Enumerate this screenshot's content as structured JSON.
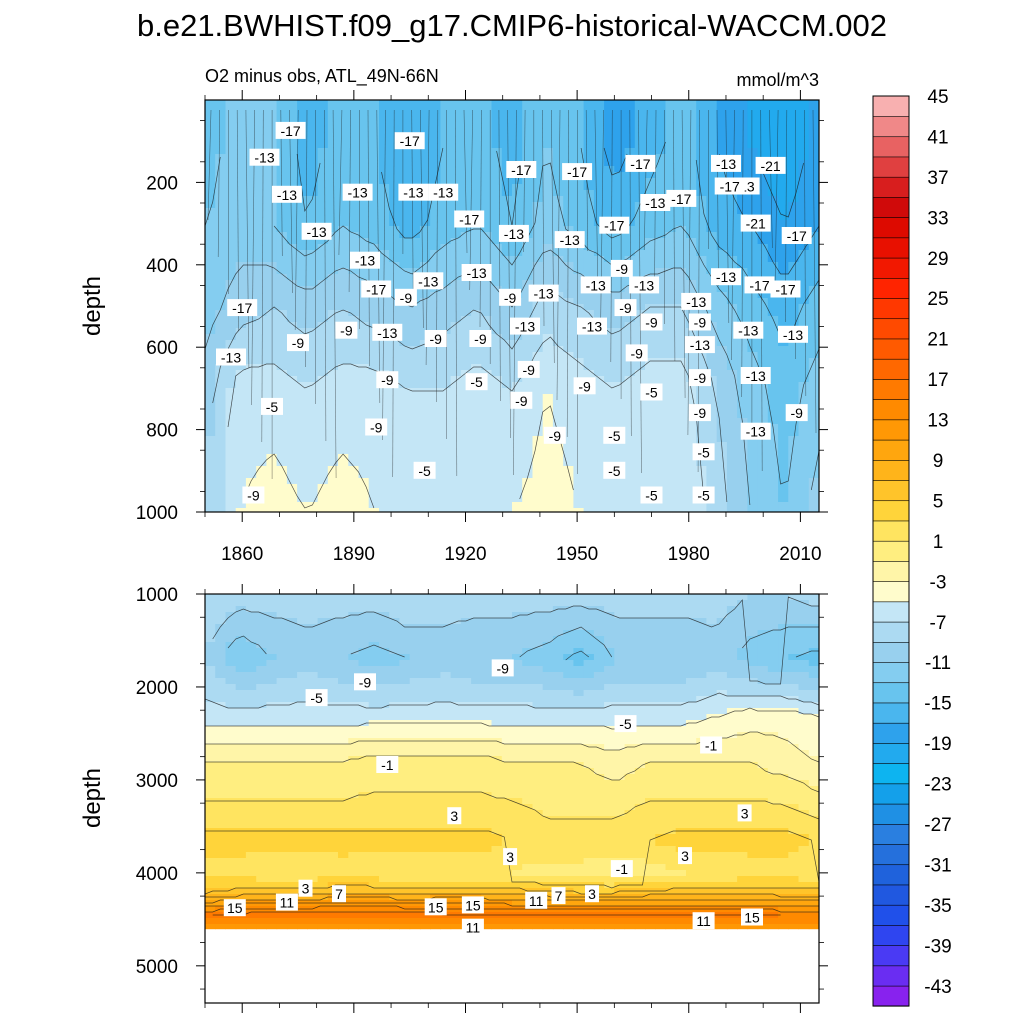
{
  "chart_data": {
    "type": "contour",
    "title": "b.e21.BWHIST.f09_g17.CMIP6-historical-WACCM.002",
    "left_subtitle": "O2 minus obs, ATL_49N-66N",
    "right_subtitle": "mmol/m^3",
    "x": {
      "range": [
        1850,
        2015
      ],
      "ticks": [
        1860,
        1890,
        1920,
        1950,
        1980,
        2010
      ],
      "tick_labels": [
        "1860",
        "1890",
        "1920",
        "1950",
        "1980",
        "2010"
      ]
    },
    "panels": [
      {
        "name": "upper",
        "ylabel": "depth",
        "ylim": [
          0,
          1000
        ],
        "yticks": [
          200,
          400,
          600,
          800,
          1000
        ],
        "ytick_labels": [
          "200",
          "400",
          "600",
          "800",
          "1000"
        ],
        "x_tick_labels_shown": true,
        "bands": [
          {
            "depth": 100,
            "values": [
              -14,
              -12,
              -13,
              -16,
              -14,
              -15,
              -17,
              -15,
              -14,
              -16,
              -13,
              -15,
              -18,
              -16,
              -14,
              -17,
              -19,
              -21,
              -18
            ]
          },
          {
            "depth": 300,
            "values": [
              -13,
              -12,
              -13,
              -15,
              -13,
              -14,
              -16,
              -14,
              -13,
              -15,
              -12,
              -14,
              -16,
              -14,
              -13,
              -16,
              -17,
              -19,
              -17
            ]
          },
          {
            "depth": 500,
            "values": [
              -12,
              -10,
              -9,
              -10,
              -9,
              -10,
              -11,
              -10,
              -9,
              -11,
              -8,
              -9,
              -10,
              -9,
              -9,
              -12,
              -14,
              -16,
              -14
            ]
          },
          {
            "depth": 700,
            "values": [
              -10,
              -6,
              -6,
              -7,
              -6,
              -6,
              -7,
              -7,
              -6,
              -7,
              -5,
              -6,
              -7,
              -6,
              -6,
              -9,
              -12,
              -14,
              -12
            ]
          },
          {
            "depth": 1000,
            "values": [
              -9,
              -5,
              -4,
              -5,
              -4,
              -5,
              -6,
              -6,
              -5,
              -5,
              -4,
              -5,
              -6,
              -5,
              -5,
              -8,
              -11,
              -13,
              -10
            ]
          }
        ],
        "contour_labels": [
          {
            "text": "-17",
            "year": 1873,
            "depth": 75
          },
          {
            "text": "-13",
            "year": 1866,
            "depth": 140
          },
          {
            "text": "-13",
            "year": 1872,
            "depth": 230
          },
          {
            "text": "-13",
            "year": 1891,
            "depth": 225
          },
          {
            "text": "-13",
            "year": 1906,
            "depth": 225
          },
          {
            "text": "-13",
            "year": 1914,
            "depth": 225
          },
          {
            "text": "-13",
            "year": 1880,
            "depth": 320
          },
          {
            "text": "-13",
            "year": 1893,
            "depth": 390
          },
          {
            "text": "-13",
            "year": 1933,
            "depth": 325
          },
          {
            "text": "-13",
            "year": 1948,
            "depth": 340
          },
          {
            "text": "-13",
            "year": 1971,
            "depth": 250
          },
          {
            "text": "-13",
            "year": 1995,
            "depth": 210
          },
          {
            "text": "-13",
            "year": 1990,
            "depth": 155
          },
          {
            "text": "-17",
            "year": 1905,
            "depth": 100
          },
          {
            "text": "-17",
            "year": 1921,
            "depth": 290
          },
          {
            "text": "-17",
            "year": 1935,
            "depth": 170
          },
          {
            "text": "-17",
            "year": 1950,
            "depth": 175
          },
          {
            "text": "-17",
            "year": 1967,
            "depth": 155
          },
          {
            "text": "-17",
            "year": 1978,
            "depth": 240
          },
          {
            "text": "-17",
            "year": 1991,
            "depth": 210
          },
          {
            "text": "-21",
            "year": 2002,
            "depth": 160
          },
          {
            "text": "-21",
            "year": 1998,
            "depth": 300
          },
          {
            "text": "-17",
            "year": 2009,
            "depth": 330
          },
          {
            "text": "-17",
            "year": 1960,
            "depth": 305
          },
          {
            "text": "-17",
            "year": 1896,
            "depth": 460
          },
          {
            "text": "-13",
            "year": 1910,
            "depth": 440
          },
          {
            "text": "-13",
            "year": 1923,
            "depth": 420
          },
          {
            "text": "-13",
            "year": 1941,
            "depth": 470
          },
          {
            "text": "-13",
            "year": 1955,
            "depth": 450
          },
          {
            "text": "-13",
            "year": 1968,
            "depth": 450
          },
          {
            "text": "-13",
            "year": 1982,
            "depth": 490
          },
          {
            "text": "-13",
            "year": 1990,
            "depth": 430
          },
          {
            "text": "-17",
            "year": 1999,
            "depth": 450
          },
          {
            "text": "-17",
            "year": 2006,
            "depth": 460
          },
          {
            "text": "-17",
            "year": 1860,
            "depth": 505
          },
          {
            "text": "-9",
            "year": 1904,
            "depth": 480
          },
          {
            "text": "-9",
            "year": 1932,
            "depth": 480
          },
          {
            "text": "-9",
            "year": 1962,
            "depth": 410
          },
          {
            "text": "-9",
            "year": 1963,
            "depth": 505
          },
          {
            "text": "-9",
            "year": 1875,
            "depth": 590
          },
          {
            "text": "-9",
            "year": 1888,
            "depth": 560
          },
          {
            "text": "-13",
            "year": 1899,
            "depth": 565
          },
          {
            "text": "-9",
            "year": 1912,
            "depth": 580
          },
          {
            "text": "-9",
            "year": 1924,
            "depth": 580
          },
          {
            "text": "-13",
            "year": 1936,
            "depth": 550
          },
          {
            "text": "-13",
            "year": 1954,
            "depth": 550
          },
          {
            "text": "-9",
            "year": 1970,
            "depth": 540
          },
          {
            "text": "-9",
            "year": 1983,
            "depth": 540
          },
          {
            "text": "-13",
            "year": 1996,
            "depth": 560
          },
          {
            "text": "-13",
            "year": 2008,
            "depth": 570
          },
          {
            "text": "-13",
            "year": 1857,
            "depth": 625
          },
          {
            "text": "-9",
            "year": 1899,
            "depth": 680
          },
          {
            "text": "-5",
            "year": 1923,
            "depth": 685
          },
          {
            "text": "-9",
            "year": 1937,
            "depth": 655
          },
          {
            "text": "-9",
            "year": 1952,
            "depth": 695
          },
          {
            "text": "-9",
            "year": 1966,
            "depth": 615
          },
          {
            "text": "-13",
            "year": 1983,
            "depth": 595
          },
          {
            "text": "-9",
            "year": 1983,
            "depth": 675
          },
          {
            "text": "-13",
            "year": 1998,
            "depth": 670
          },
          {
            "text": "-5",
            "year": 1868,
            "depth": 745
          },
          {
            "text": "-9",
            "year": 1896,
            "depth": 795
          },
          {
            "text": "-9",
            "year": 1935,
            "depth": 730
          },
          {
            "text": "-5",
            "year": 1970,
            "depth": 710
          },
          {
            "text": "-9",
            "year": 1983,
            "depth": 760
          },
          {
            "text": "-13",
            "year": 1998,
            "depth": 805
          },
          {
            "text": "-9",
            "year": 2009,
            "depth": 760
          },
          {
            "text": "-9",
            "year": 1944,
            "depth": 815
          },
          {
            "text": "-5",
            "year": 1960,
            "depth": 815
          },
          {
            "text": "-5",
            "year": 1984,
            "depth": 855
          },
          {
            "text": "-5",
            "year": 1909,
            "depth": 900
          },
          {
            "text": "-5",
            "year": 1960,
            "depth": 900
          },
          {
            "text": "-9",
            "year": 1863,
            "depth": 960
          },
          {
            "text": "-5",
            "year": 1970,
            "depth": 960
          },
          {
            "text": "-5",
            "year": 1984,
            "depth": 960
          }
        ]
      },
      {
        "name": "lower",
        "ylabel": "depth",
        "ylim": [
          1000,
          5400
        ],
        "yticks": [
          1000,
          2000,
          3000,
          4000,
          5000
        ],
        "ytick_labels": [
          "1000",
          "2000",
          "3000",
          "4000",
          "5000"
        ],
        "x_tick_labels_shown": false,
        "data_bottom_depth": 4600,
        "bands": [
          {
            "depth": 1000,
            "values": [
              -7,
              -8,
              -8,
              -8,
              -8,
              -8,
              -7,
              -8,
              -8,
              -8,
              -8,
              -8,
              -8,
              -8,
              -8,
              -8,
              -9,
              -9,
              -8
            ]
          },
          {
            "depth": 1700,
            "values": [
              -9,
              -13,
              -11,
              -10,
              -11,
              -12,
              -11,
              -10,
              -11,
              -11,
              -12,
              -14,
              -11,
              -11,
              -11,
              -10,
              -12,
              -13,
              -14
            ]
          },
          {
            "depth": 2300,
            "values": [
              -6,
              -6,
              -6,
              -6,
              -6,
              -6,
              -6,
              -6,
              -6,
              -6,
              -6,
              -6,
              -6,
              -6,
              -6,
              -5,
              -4,
              -4,
              -5
            ]
          },
          {
            "depth": 2800,
            "values": [
              -1,
              -1,
              -1,
              -1,
              -1,
              0,
              0,
              0,
              0,
              -1,
              -1,
              -1,
              -2,
              -1,
              -1,
              -1,
              -1,
              -2,
              -3
            ]
          },
          {
            "depth": 3400,
            "values": [
              2,
              2,
              2,
              2,
              2,
              2,
              2,
              2,
              2,
              2,
              1,
              1,
              1,
              2,
              2,
              2,
              2,
              2,
              1
            ]
          },
          {
            "depth": 3650,
            "values": [
              4,
              4,
              4,
              4,
              4,
              4,
              4,
              4,
              4,
              3,
              3,
              3,
              3,
              3,
              4,
              4,
              4,
              4,
              3
            ]
          },
          {
            "depth": 4000,
            "values": [
              2,
              2,
              1,
              1,
              2,
              1,
              1,
              1,
              1,
              1,
              0,
              0,
              -1,
              0,
              1,
              1,
              2,
              2,
              1
            ]
          },
          {
            "depth": 4200,
            "values": [
              5,
              6,
              6,
              6,
              7,
              7,
              6,
              7,
              7,
              6,
              6,
              5,
              5,
              6,
              6,
              6,
              6,
              6,
              6
            ]
          },
          {
            "depth": 4450,
            "values": [
              15,
              16,
              17,
              17,
              17,
              17,
              17,
              16,
              16,
              16,
              16,
              16,
              16,
              16,
              16,
              16,
              16,
              15,
              15
            ]
          },
          {
            "depth": 4600,
            "values": [
              12,
              12,
              12,
              12,
              12,
              12,
              12,
              12,
              12,
              12,
              12,
              12,
              12,
              12,
              12,
              12,
              12,
              12,
              12
            ]
          }
        ],
        "contour_labels": [
          {
            "text": "-9",
            "year": 1893,
            "depth": 1950
          },
          {
            "text": "-9",
            "year": 1930,
            "depth": 1800
          },
          {
            "text": "-5",
            "year": 1880,
            "depth": 2120
          },
          {
            "text": "-5",
            "year": 1963,
            "depth": 2400
          },
          {
            "text": "-1",
            "year": 1986,
            "depth": 2630
          },
          {
            "text": "-1",
            "year": 1899,
            "depth": 2840
          },
          {
            "text": "3",
            "year": 1917,
            "depth": 3390
          },
          {
            "text": "3",
            "year": 1995,
            "depth": 3360
          },
          {
            "text": "3",
            "year": 1932,
            "depth": 3830
          },
          {
            "text": "3",
            "year": 1979,
            "depth": 3820
          },
          {
            "text": "-1",
            "year": 1962,
            "depth": 3960
          },
          {
            "text": "3",
            "year": 1877,
            "depth": 4170
          },
          {
            "text": "7",
            "year": 1886,
            "depth": 4230
          },
          {
            "text": "3",
            "year": 1954,
            "depth": 4230
          },
          {
            "text": "7",
            "year": 1945,
            "depth": 4250
          },
          {
            "text": "15",
            "year": 1858,
            "depth": 4380
          },
          {
            "text": "11",
            "year": 1872,
            "depth": 4320
          },
          {
            "text": "15",
            "year": 1912,
            "depth": 4370
          },
          {
            "text": "15",
            "year": 1922,
            "depth": 4350
          },
          {
            "text": "11",
            "year": 1939,
            "depth": 4300
          },
          {
            "text": "11",
            "year": 1922,
            "depth": 4590
          },
          {
            "text": "11",
            "year": 1984,
            "depth": 4520
          },
          {
            "text": "15",
            "year": 1997,
            "depth": 4480
          }
        ]
      }
    ],
    "colorbar": {
      "levels": [
        -45,
        -43,
        -41,
        -39,
        -37,
        -35,
        -33,
        -31,
        -29,
        -27,
        -25,
        -23,
        -21,
        -19,
        -17,
        -15,
        -13,
        -11,
        -9,
        -7,
        -5,
        -3,
        -1,
        1,
        3,
        5,
        7,
        9,
        11,
        13,
        15,
        17,
        19,
        21,
        23,
        25,
        27,
        29,
        31,
        33,
        35,
        37,
        39,
        41,
        43,
        45
      ],
      "labels": [
        "45",
        "41",
        "37",
        "33",
        "29",
        "25",
        "21",
        "17",
        "13",
        "9",
        "5",
        "1",
        "-3",
        "-7",
        "-11",
        "-15",
        "-19",
        "-23",
        "-27",
        "-31",
        "-35",
        "-39",
        "-43"
      ],
      "colors": [
        "#8822ee",
        "#6a2df2",
        "#4a3af4",
        "#2f45f0",
        "#2050ea",
        "#2058e0",
        "#1f62dc",
        "#2570dc",
        "#2a7fe0",
        "#1f90e4",
        "#14a0ea",
        "#0db4f0",
        "#22aaee",
        "#2ea2ec",
        "#4ab6ee",
        "#68c4ee",
        "#84cdf0",
        "#98d0ee",
        "#acdaf2",
        "#c4e6f6",
        "#fffccc",
        "#fff5a8",
        "#ffee80",
        "#ffe460",
        "#ffd43a",
        "#ffc42a",
        "#ffb41a",
        "#ffa60e",
        "#ff9805",
        "#ff8a00",
        "#ff7a00",
        "#ff6800",
        "#ff5a00",
        "#ff4a00",
        "#ff3800",
        "#ff2400",
        "#f21800",
        "#e81000",
        "#dd0a00",
        "#d00a0a",
        "#d81e1e",
        "#e04040",
        "#e86262",
        "#f08888",
        "#f8b0b0"
      ]
    }
  }
}
